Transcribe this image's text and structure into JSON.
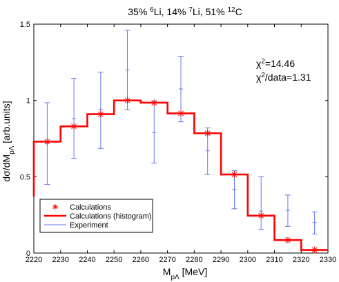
{
  "chart_data": {
    "type": "line",
    "title": "35% 6Li, 14% 7Li, 51% 12C",
    "title_parts": [
      {
        "text": "35% ",
        "sup": false
      },
      {
        "text": "6",
        "sup": true
      },
      {
        "text": "Li, 14% ",
        "sup": false
      },
      {
        "text": "7",
        "sup": true
      },
      {
        "text": "Li, 51% ",
        "sup": false
      },
      {
        "text": "12",
        "sup": true
      },
      {
        "text": "C",
        "sup": false
      }
    ],
    "xlabel": "M",
    "xlabel_sub": "pΛ",
    "xlabel_unit": " [MeV]",
    "ylabel": "dσ/dM",
    "ylabel_sub": "pΛ",
    "ylabel_unit": " [arb.units]",
    "xlim": [
      2220,
      2330
    ],
    "ylim": [
      0,
      1.5
    ],
    "xticks": [
      2220,
      2230,
      2240,
      2250,
      2260,
      2270,
      2280,
      2290,
      2300,
      2310,
      2320,
      2330
    ],
    "xtick_labels": [
      "2220",
      "2230",
      "2240",
      "2250",
      "2260",
      "2270",
      "2280",
      "2290",
      "2300",
      "2310",
      "2320",
      "2330"
    ],
    "yticks": [
      0,
      0.5,
      1,
      1.5
    ],
    "ytick_labels": [
      "0",
      "0.5",
      "1",
      "1.5"
    ],
    "grid": false,
    "legend_position": "bottom-left",
    "annotations": [
      {
        "prefix": "χ",
        "sup": "2",
        "text": "=14.46"
      },
      {
        "prefix": "χ",
        "sup": "2",
        "text": "/data=1.31"
      }
    ],
    "series": [
      {
        "name": "Calculations",
        "marker": "asterisk",
        "color": "#ff0000",
        "x": [
          2225,
          2235,
          2245,
          2255,
          2265,
          2275,
          2285,
          2295,
          2305,
          2315,
          2325
        ],
        "y": [
          0.73,
          0.83,
          0.91,
          1.0,
          0.985,
          0.915,
          0.785,
          0.515,
          0.245,
          0.085,
          0.02
        ]
      },
      {
        "name": "Calculations (histogram)",
        "style": "step",
        "color": "#ff0000",
        "bins": [
          2220,
          2230,
          2240,
          2250,
          2260,
          2270,
          2280,
          2290,
          2300,
          2310,
          2320,
          2330
        ],
        "values": [
          0.73,
          0.83,
          0.91,
          1.0,
          0.985,
          0.915,
          0.785,
          0.515,
          0.245,
          0.085,
          0.02
        ],
        "start_value": 0.37
      },
      {
        "name": "Experiment",
        "style": "errorbar",
        "color": "#6677ee",
        "points": [
          {
            "x": 2225,
            "y": 0.72,
            "low": 0.45,
            "high": 0.985
          },
          {
            "x": 2235,
            "y": 0.88,
            "low": 0.62,
            "high": 1.145
          },
          {
            "x": 2245,
            "y": 0.94,
            "low": 0.685,
            "high": 1.185
          },
          {
            "x": 2255,
            "y": 1.2,
            "low": 0.94,
            "high": 1.46
          },
          {
            "x": 2265,
            "y": 0.79,
            "low": 0.59,
            "high": 0.995
          },
          {
            "x": 2275,
            "y": 1.075,
            "low": 0.86,
            "high": 1.29
          },
          {
            "x": 2285,
            "y": 0.67,
            "low": 0.515,
            "high": 0.82
          },
          {
            "x": 2295,
            "y": 0.415,
            "low": 0.29,
            "high": 0.54
          },
          {
            "x": 2305,
            "y": 0.275,
            "low": 0.155,
            "high": 0.5
          },
          {
            "x": 2315,
            "y": 0.28,
            "low": 0.175,
            "high": 0.38
          },
          {
            "x": 2325,
            "y": 0.2,
            "low": 0.125,
            "high": 0.27
          }
        ]
      }
    ]
  },
  "legend": {
    "items": [
      {
        "label": "Calculations",
        "kind": "asterisk",
        "color": "#ff0000"
      },
      {
        "label": "Calculations (histogram)",
        "kind": "thick-line",
        "color": "#ff0000"
      },
      {
        "label": "Experiment",
        "kind": "thin-line",
        "color": "#6677ee"
      }
    ],
    "border_color": "#000000"
  },
  "colors": {
    "axis": "#000000",
    "calc": "#ff0000",
    "exp": "#6677ee",
    "background": "#ffffff"
  }
}
